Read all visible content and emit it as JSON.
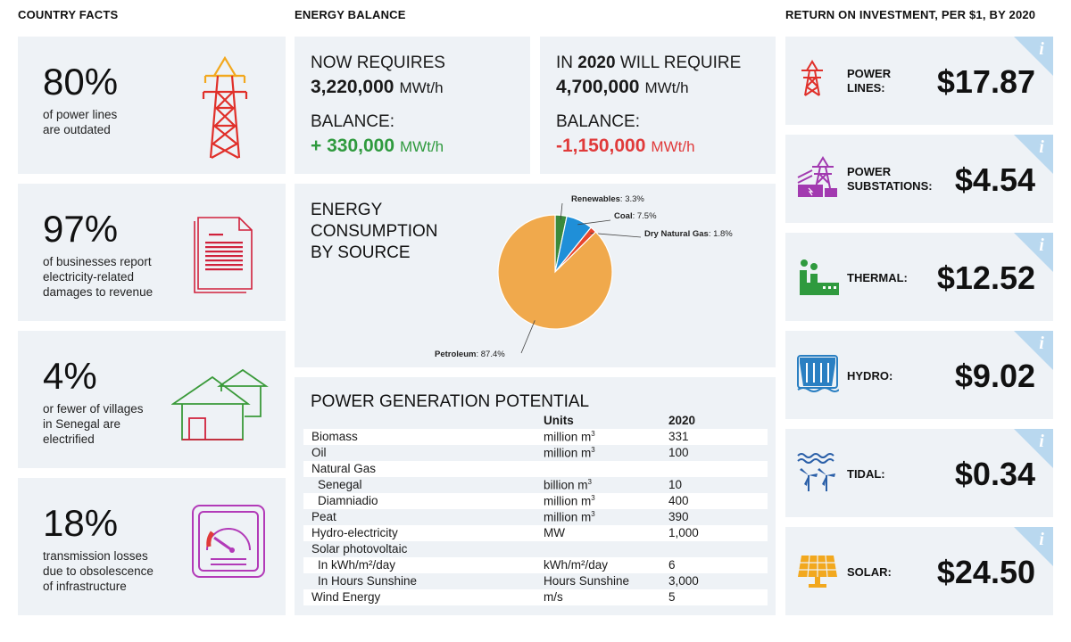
{
  "headers": {
    "country_facts": "COUNTRY FACTS",
    "energy_balance": "ENERGY BALANCE",
    "roi": "RETURN ON INVESTMENT, PER $1, BY 2020"
  },
  "facts": [
    {
      "value": "80%",
      "desc": "of power lines\nare outdated",
      "icon": "power-tower-icon"
    },
    {
      "value": "97%",
      "desc": "of businesses report\nelectricity-related\ndamages to revenue",
      "icon": "document-icon"
    },
    {
      "value": "4%",
      "desc": "or fewer of villages\nin Senegal are\nelectrified",
      "icon": "village-huts-icon"
    },
    {
      "value": "18%",
      "desc": "transmission losses\ndue to obsolescence\nof infrastructure",
      "icon": "meter-gauge-icon"
    }
  ],
  "balance_now": {
    "title": "NOW REQUIRES",
    "amount": "3,220,000",
    "unit": "MWt/h",
    "balance_label": "BALANCE:",
    "balance_value": "+ 330,000",
    "balance_unit": "MWt/h",
    "balance_color": "#2f9a3e"
  },
  "balance_2020": {
    "title_pre": "IN ",
    "title_year": "2020",
    "title_post": " WILL REQUIRE",
    "amount": "4,700,000",
    "unit": "MWt/h",
    "balance_label": "BALANCE:",
    "balance_value": "-1,150,000",
    "balance_unit": "MWt/h",
    "balance_color": "#e03a3a"
  },
  "consumption": {
    "title": "ENERGY\nCONSUMPTION\nBY SOURCE"
  },
  "chart_data": {
    "type": "pie",
    "title": "ENERGY CONSUMPTION BY SOURCE",
    "slices": [
      {
        "label": "Renewables",
        "value": 3.3,
        "display": "3.3%",
        "color": "#3a8a3c"
      },
      {
        "label": "Coal",
        "value": 7.5,
        "display": "7.5%",
        "color": "#1f8fd8"
      },
      {
        "label": "Dry Natural Gas",
        "value": 1.8,
        "display": "1.8%",
        "color": "#e8452c"
      },
      {
        "label": "Petroleum",
        "value": 87.4,
        "display": "87.4%",
        "color": "#f0a94c"
      }
    ]
  },
  "generation": {
    "title": "POWER GENERATION POTENTIAL",
    "columns": [
      "",
      "Units",
      "2020"
    ],
    "rows": [
      {
        "name": "Biomass",
        "unit": "million m",
        "sup": "3",
        "value": "331",
        "indent": false
      },
      {
        "name": "Oil",
        "unit": "million m",
        "sup": "3",
        "value": "100",
        "indent": false
      },
      {
        "name": "Natural Gas",
        "unit": "",
        "sup": "",
        "value": "",
        "indent": false
      },
      {
        "name": "Senegal",
        "unit": "billion m",
        "sup": "3",
        "value": "10",
        "indent": true
      },
      {
        "name": "Diamniadio",
        "unit": "million m",
        "sup": "3",
        "value": "400",
        "indent": true
      },
      {
        "name": "Peat",
        "unit": "million m",
        "sup": "3",
        "value": "390",
        "indent": false
      },
      {
        "name": "Hydro-electricity",
        "unit": "MW",
        "sup": "",
        "value": "1,000",
        "indent": false
      },
      {
        "name": "Solar photovoltaic",
        "unit": "",
        "sup": "",
        "value": "",
        "indent": false
      },
      {
        "name": "In kWh/m²/day",
        "unit": "kWh/m²/day",
        "sup": "",
        "value": "6",
        "indent": true
      },
      {
        "name": "In Hours Sunshine",
        "unit": "Hours Sunshine",
        "sup": "",
        "value": "3,000",
        "indent": true
      },
      {
        "name": "Wind Energy",
        "unit": "m/s",
        "sup": "",
        "value": "5",
        "indent": false
      }
    ]
  },
  "roi": [
    {
      "label": "POWER\nLINES:",
      "value": "$17.87",
      "icon": "power-line-icon",
      "color": "#e0302a"
    },
    {
      "label": "POWER\nSUBSTATIONS:",
      "value": "$4.54",
      "icon": "substation-icon",
      "color": "#a23ab0"
    },
    {
      "label": "THERMAL:",
      "value": "$12.52",
      "icon": "thermal-plant-icon",
      "color": "#2f9a3e"
    },
    {
      "label": "HYDRO:",
      "value": "$9.02",
      "icon": "hydro-dam-icon",
      "color": "#2a7fc2"
    },
    {
      "label": "TIDAL:",
      "value": "$0.34",
      "icon": "tidal-turbine-icon",
      "color": "#2a5fa8"
    },
    {
      "label": "SOLAR:",
      "value": "$24.50",
      "icon": "solar-panel-icon",
      "color": "#f2a81e"
    }
  ],
  "info_glyph": "i"
}
